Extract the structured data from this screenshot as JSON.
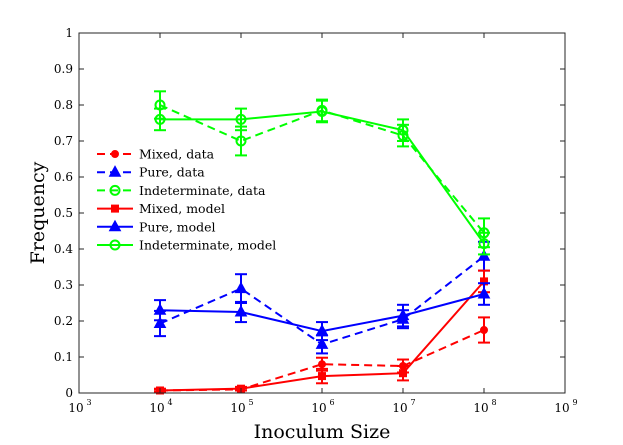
{
  "chart_data": {
    "type": "line",
    "title": "",
    "xlabel": "Inoculum Size",
    "ylabel": "Frequency",
    "xscale": "log",
    "xlim_exp": [
      3,
      9
    ],
    "ylim": [
      0,
      1
    ],
    "grid": false,
    "legend_position": "upper-left",
    "x_ticks": [
      {
        "exp": 3,
        "label": "10",
        "sup": "3"
      },
      {
        "exp": 4,
        "label": "10",
        "sup": "4"
      },
      {
        "exp": 5,
        "label": "10",
        "sup": "5"
      },
      {
        "exp": 6,
        "label": "10",
        "sup": "6"
      },
      {
        "exp": 7,
        "label": "10",
        "sup": "7"
      },
      {
        "exp": 8,
        "label": "10",
        "sup": "8"
      },
      {
        "exp": 9,
        "label": "10",
        "sup": "9"
      }
    ],
    "y_ticks": [
      {
        "value": 0,
        "label": "0"
      },
      {
        "value": 0.1,
        "label": "0.1"
      },
      {
        "value": 0.2,
        "label": "0.2"
      },
      {
        "value": 0.3,
        "label": "0.3"
      },
      {
        "value": 0.4,
        "label": "0.4"
      },
      {
        "value": 0.5,
        "label": "0.5"
      },
      {
        "value": 0.6,
        "label": "0.6"
      },
      {
        "value": 0.7,
        "label": "0.7"
      },
      {
        "value": 0.8,
        "label": "0.8"
      },
      {
        "value": 0.9,
        "label": "0.9"
      },
      {
        "value": 1,
        "label": "1"
      }
    ],
    "x_exp": [
      4,
      5,
      6,
      7,
      8
    ],
    "series": [
      {
        "name": "Mixed, data",
        "color": "#ff0000",
        "dash": true,
        "marker": "dot",
        "values": [
          0.007,
          0.01,
          0.08,
          0.075,
          0.175
        ],
        "err": [
          0.003,
          0.003,
          0.018,
          0.018,
          0.035
        ]
      },
      {
        "name": "Pure, data",
        "color": "#0000ff",
        "dash": true,
        "marker": "triangle",
        "values": [
          0.193,
          0.29,
          0.135,
          0.205,
          0.38
        ],
        "err": [
          0.035,
          0.04,
          0.025,
          0.025,
          0.04
        ]
      },
      {
        "name": "Indeterminate, data",
        "color": "#00ff00",
        "dash": true,
        "marker": "circle",
        "values": [
          0.8,
          0.7,
          0.785,
          0.715,
          0.445
        ],
        "err": [
          0.038,
          0.04,
          0.03,
          0.03,
          0.04
        ]
      },
      {
        "name": "Mixed, model",
        "color": "#ff0000",
        "dash": false,
        "marker": "square",
        "values": [
          0.007,
          0.012,
          0.047,
          0.055,
          0.31
        ],
        "err": [
          0.005,
          0.005,
          0.02,
          0.02,
          0.03
        ]
      },
      {
        "name": "Pure, model",
        "color": "#0000ff",
        "dash": false,
        "marker": "triangle",
        "values": [
          0.23,
          0.225,
          0.172,
          0.215,
          0.275
        ],
        "err": [
          0.028,
          0.028,
          0.025,
          0.03,
          0.03
        ]
      },
      {
        "name": "Indeterminate, model",
        "color": "#00ff00",
        "dash": false,
        "marker": "circle",
        "values": [
          0.76,
          0.76,
          0.782,
          0.73,
          0.415
        ],
        "err": [
          0.03,
          0.03,
          0.03,
          0.03,
          0.03
        ]
      }
    ]
  }
}
